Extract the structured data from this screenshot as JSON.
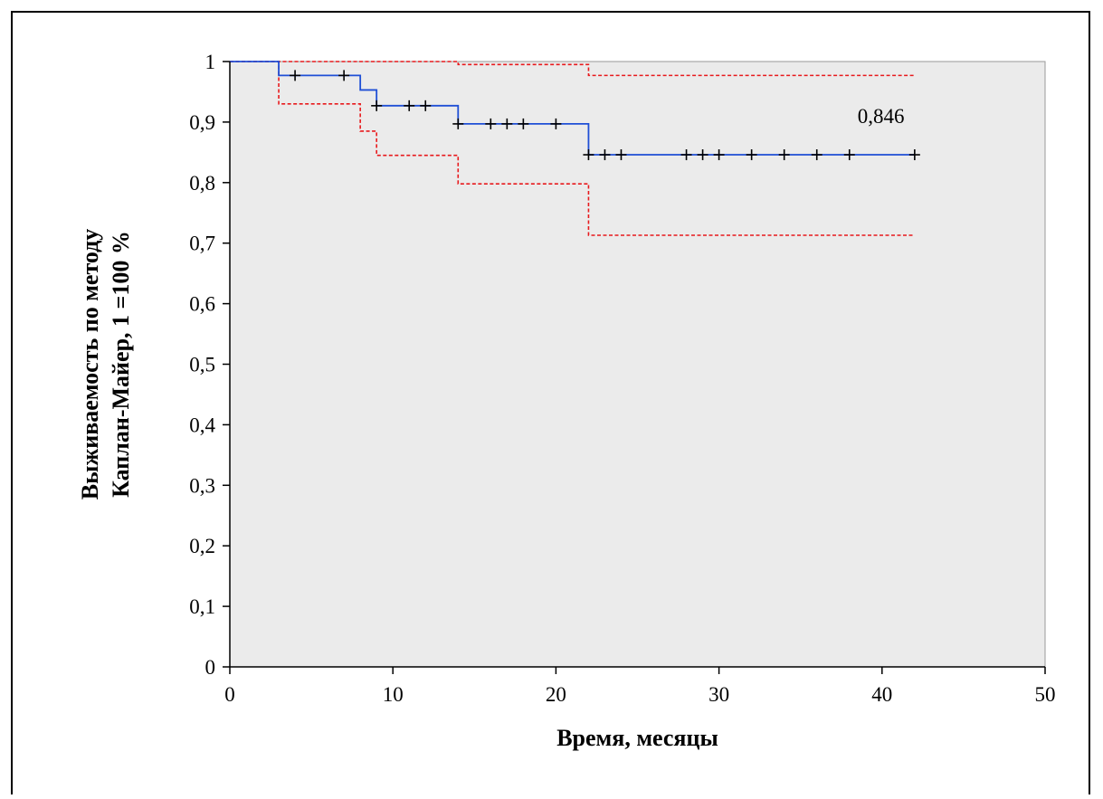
{
  "chart_data": {
    "type": "line",
    "title": "",
    "xlabel": "Время, месяцы",
    "ylabel_lines": [
      "Выживаемость по методу",
      "Каплан-Майер, 1 =100 %"
    ],
    "xlim": [
      0,
      50
    ],
    "ylim": [
      0,
      1
    ],
    "x_ticks": [
      0,
      10,
      20,
      30,
      40,
      50
    ],
    "x_tick_labels": [
      "0",
      "10",
      "20",
      "30",
      "40",
      "50"
    ],
    "y_ticks": [
      0,
      0.1,
      0.2,
      0.3,
      0.4,
      0.5,
      0.6,
      0.7,
      0.8,
      0.9,
      1
    ],
    "y_tick_labels": [
      "0",
      "0,1",
      "0,2",
      "0,3",
      "0,4",
      "0,5",
      "0,6",
      "0,7",
      "0,8",
      "0,9",
      "1"
    ],
    "grid": false,
    "plot_background": "#ebebeb",
    "annotation": {
      "text": "0,846",
      "x": 38.5,
      "y": 0.91
    },
    "survival": {
      "color": "#1f4fd6",
      "steps": [
        [
          0,
          1
        ],
        [
          3,
          0.977
        ],
        [
          8,
          0.953
        ],
        [
          9,
          0.927
        ],
        [
          14,
          0.897
        ],
        [
          22,
          0.846
        ],
        [
          42,
          0.846
        ]
      ]
    },
    "censor_marks": {
      "color": "#000000",
      "points": [
        [
          4,
          0.977
        ],
        [
          7,
          0.977
        ],
        [
          9,
          0.927
        ],
        [
          11,
          0.927
        ],
        [
          12,
          0.927
        ],
        [
          14,
          0.897
        ],
        [
          16,
          0.897
        ],
        [
          17,
          0.897
        ],
        [
          18,
          0.897
        ],
        [
          20,
          0.897
        ],
        [
          22,
          0.846
        ],
        [
          23,
          0.846
        ],
        [
          24,
          0.846
        ],
        [
          28,
          0.846
        ],
        [
          29,
          0.846
        ],
        [
          30,
          0.846
        ],
        [
          32,
          0.846
        ],
        [
          34,
          0.846
        ],
        [
          36,
          0.846
        ],
        [
          38,
          0.846
        ],
        [
          42,
          0.846
        ]
      ]
    },
    "ci_upper": {
      "color": "#e8191c",
      "steps": [
        [
          0,
          1
        ],
        [
          3,
          1
        ],
        [
          14,
          0.995
        ],
        [
          22,
          0.977
        ],
        [
          42,
          0.977
        ]
      ]
    },
    "ci_lower": {
      "color": "#e8191c",
      "steps": [
        [
          0,
          1
        ],
        [
          3,
          0.93
        ],
        [
          8,
          0.885
        ],
        [
          9,
          0.845
        ],
        [
          14,
          0.798
        ],
        [
          22,
          0.713
        ],
        [
          42,
          0.713
        ]
      ]
    }
  }
}
